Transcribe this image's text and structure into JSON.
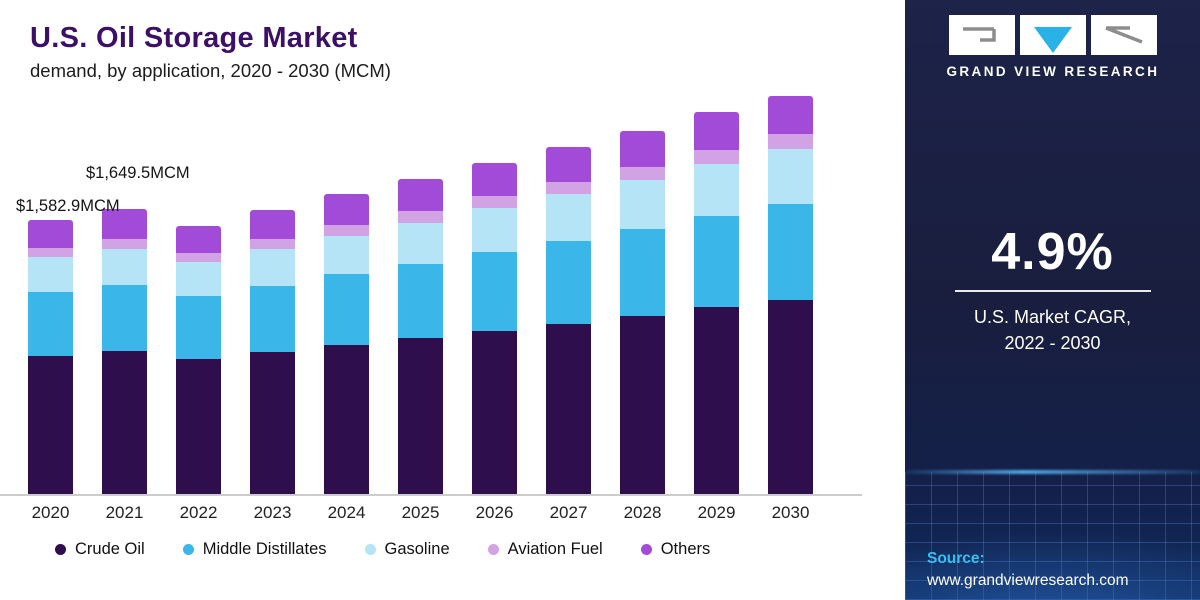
{
  "header": {
    "title": "U.S. Oil Storage Market",
    "subtitle": "demand, by application, 2020 - 2030 (MCM)"
  },
  "annotations": {
    "y2021": "$1,649.5MCM",
    "y2020": "$1,582.9MCM"
  },
  "chart_data": {
    "type": "bar",
    "stacked": true,
    "title": "U.S. Oil Storage Market demand, by application, 2020 - 2030 (MCM)",
    "xlabel": "",
    "ylabel": "MCM",
    "grid": false,
    "legend_position": "bottom",
    "categories": [
      "2020",
      "2021",
      "2022",
      "2023",
      "2024",
      "2025",
      "2026",
      "2027",
      "2028",
      "2029",
      "2030"
    ],
    "series": [
      {
        "name": "Crude Oil",
        "color": "#2e0e4d",
        "values": [
          800,
          825,
          780,
          820,
          860,
          900,
          945,
          985,
          1030,
          1080,
          1125
        ]
      },
      {
        "name": "Middle Distillates",
        "color": "#3ab7e8",
        "values": [
          370,
          385,
          365,
          385,
          410,
          430,
          455,
          480,
          500,
          530,
          555
        ]
      },
      {
        "name": "Gasoline",
        "color": "#b6e4f7",
        "values": [
          200,
          210,
          195,
          210,
          225,
          240,
          255,
          270,
          285,
          300,
          315
        ]
      },
      {
        "name": "Aviation Fuel",
        "color": "#d2a3e4",
        "values": [
          55,
          58,
          52,
          58,
          62,
          66,
          68,
          72,
          75,
          80,
          85
        ]
      },
      {
        "name": "Others",
        "color": "#a24bd8",
        "values": [
          157.9,
          171.5,
          160,
          172,
          180,
          188,
          193,
          201,
          210,
          220,
          222
        ]
      }
    ],
    "labeled_totals": [
      {
        "category": "2020",
        "label": "$1,582.9MCM",
        "value": 1582.9
      },
      {
        "category": "2021",
        "label": "$1,649.5MCM",
        "value": 1649.5
      }
    ],
    "ylim": [
      0,
      2302
    ]
  },
  "sidebar": {
    "brand": "GRAND VIEW RESEARCH",
    "stat_value": "4.9%",
    "stat_label_line1": "U.S. Market CAGR,",
    "stat_label_line2": "2022 - 2030",
    "source_label": "Source:",
    "source_url": "www.grandviewresearch.com",
    "accent_cyan": "#35c0f0",
    "background_navy": "#191e3e"
  }
}
